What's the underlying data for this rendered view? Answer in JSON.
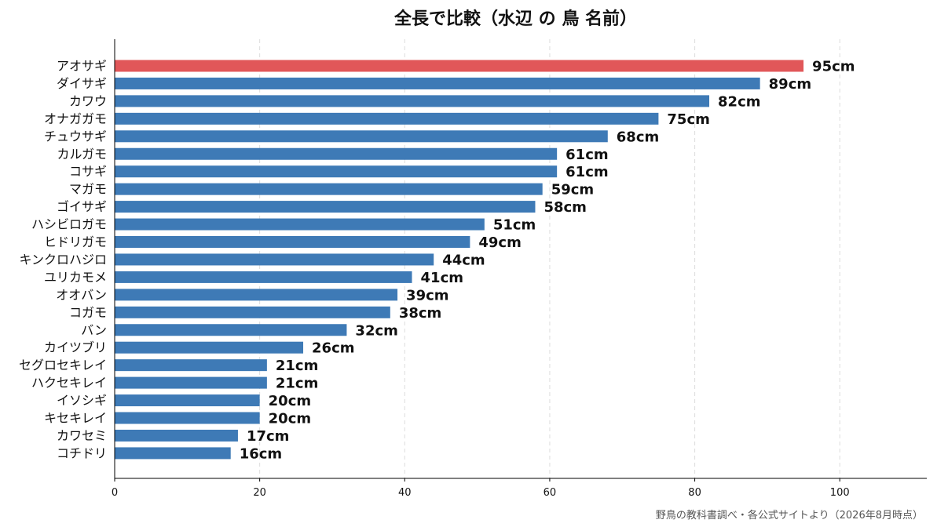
{
  "chart_data": {
    "type": "bar",
    "orientation": "horizontal",
    "title": "全長で比較（水辺 の 鳥 名前）",
    "xlabel": "",
    "ylabel": "",
    "xlim": [
      0,
      112
    ],
    "xticks": [
      0,
      20,
      40,
      60,
      80,
      100
    ],
    "grid": "vertical dashed",
    "value_suffix": "cm",
    "highlight_color": "#e15759",
    "bar_color": "#3e7ab6",
    "categories": [
      "アオサギ",
      "ダイサギ",
      "カワウ",
      "オナガガモ",
      "チュウサギ",
      "カルガモ",
      "コサギ",
      "マガモ",
      "ゴイサギ",
      "ハシビロガモ",
      "ヒドリガモ",
      "キンクロハジロ",
      "ユリカモメ",
      "オオバン",
      "コガモ",
      "バン",
      "カイツブリ",
      "セグロセキレイ",
      "ハクセキレイ",
      "イソシギ",
      "キセキレイ",
      "カワセミ",
      "コチドリ"
    ],
    "values": [
      95,
      89,
      82,
      75,
      68,
      61,
      61,
      59,
      58,
      51,
      49,
      44,
      41,
      39,
      38,
      32,
      26,
      21,
      21,
      20,
      20,
      17,
      16
    ],
    "highlighted": [
      "アオサギ"
    ]
  },
  "footer": {
    "source": "野鳥の教科書調べ・各公式サイトより（2026年8月時点）"
  }
}
